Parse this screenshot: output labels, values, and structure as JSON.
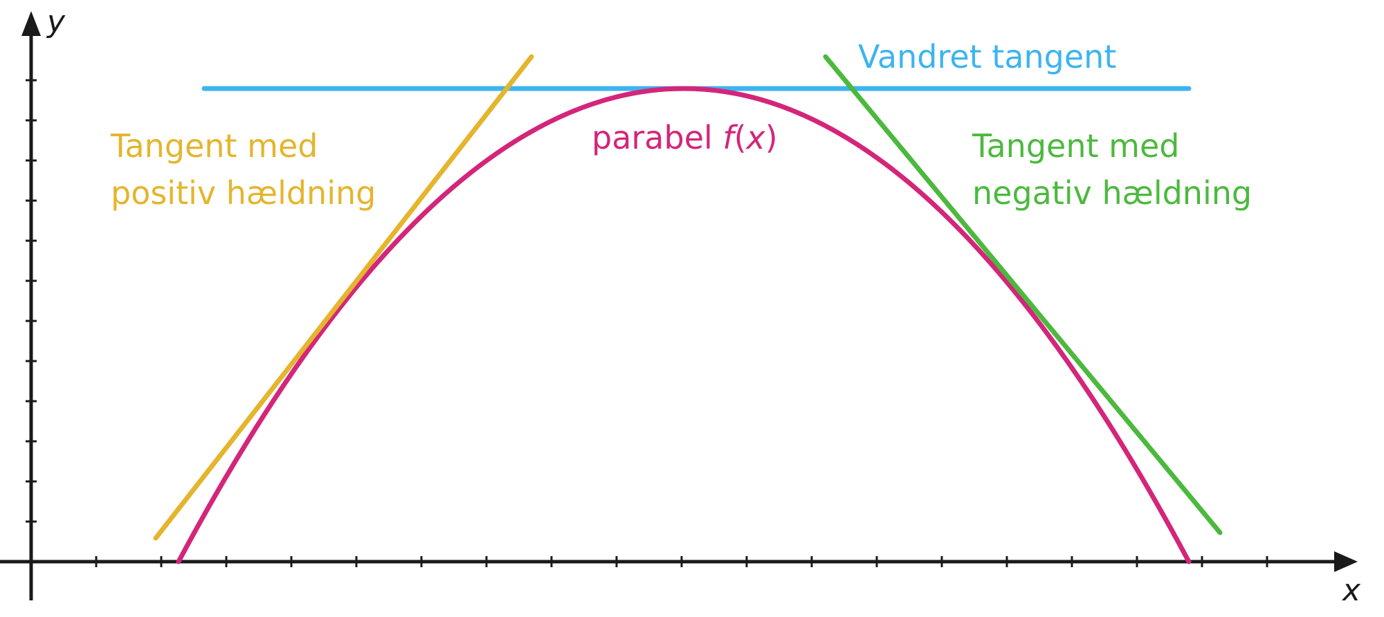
{
  "axes": {
    "x_label": "x",
    "y_label": "y"
  },
  "labels": {
    "horizontal_tangent": "Vandret tangent",
    "positive_tangent_line1": "Tangent med",
    "positive_tangent_line2": "positiv hældning",
    "negative_tangent_line1": "Tangent med",
    "negative_tangent_line2": "negativ hældning",
    "parabola_prefix": "parabel ",
    "parabola_func": "f",
    "parabola_open": "(",
    "parabola_var": "x",
    "parabola_close": ")"
  },
  "colors": {
    "axis": "#1a1a1a",
    "parabola": "#d3267a",
    "horizontal_tangent": "#3db4ef",
    "positive_tangent": "#e4b52d",
    "negative_tangent": "#4cb93e"
  }
}
